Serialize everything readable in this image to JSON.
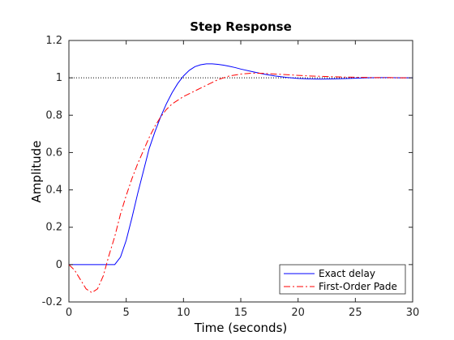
{
  "chart_data": {
    "type": "line",
    "title": "Step Response",
    "xlabel": "Time (seconds)",
    "ylabel": "Amplitude",
    "xlim": [
      0,
      30
    ],
    "ylim": [
      -0.2,
      1.2
    ],
    "xticks": [
      0,
      5,
      10,
      15,
      20,
      25,
      30
    ],
    "yticks": [
      -0.2,
      0,
      0.2,
      0.4,
      0.6,
      0.8,
      1,
      1.2
    ],
    "xtick_labels": [
      "0",
      "5",
      "10",
      "15",
      "20",
      "25",
      "30"
    ],
    "ytick_labels": [
      "-0.2",
      "0",
      "0.2",
      "0.4",
      "0.6",
      "0.8",
      "1",
      "1.2"
    ],
    "grid": false,
    "legend_position": "bottom-right",
    "reference_line": {
      "y": 1,
      "style": "dotted",
      "color": "#000000"
    },
    "series": [
      {
        "name": "Exact delay",
        "color": "#0000ff",
        "style": "solid",
        "x": [
          0,
          1,
          2,
          3,
          4,
          4.5,
          5,
          5.5,
          6,
          6.5,
          7,
          7.5,
          8,
          8.5,
          9,
          9.5,
          10,
          10.5,
          11,
          11.5,
          12,
          12.5,
          13,
          13.5,
          14,
          14.5,
          15,
          16,
          17,
          18,
          19,
          20,
          21,
          22,
          23,
          24,
          25,
          26,
          27,
          28,
          29,
          30
        ],
        "y": [
          0,
          0,
          0,
          0,
          0,
          0.04,
          0.13,
          0.25,
          0.38,
          0.5,
          0.62,
          0.71,
          0.79,
          0.86,
          0.92,
          0.97,
          1.01,
          1.04,
          1.06,
          1.07,
          1.075,
          1.075,
          1.072,
          1.068,
          1.062,
          1.055,
          1.047,
          1.033,
          1.02,
          1.01,
          1.002,
          0.997,
          0.994,
          0.993,
          0.994,
          0.996,
          0.998,
          1.0,
          1.001,
          1.001,
          1.0,
          1.0
        ]
      },
      {
        "name": "First-Order Pade",
        "color": "#ff0000",
        "style": "dashdot",
        "x": [
          0,
          0.5,
          1,
          1.5,
          2,
          2.5,
          3,
          3.5,
          4,
          4.5,
          5,
          5.5,
          6,
          6.5,
          7,
          7.5,
          8,
          8.5,
          9,
          9.5,
          10,
          11,
          12,
          13,
          14,
          15,
          16,
          17,
          18,
          19,
          20,
          21,
          22,
          23,
          24,
          25,
          26,
          27,
          28,
          29,
          30
        ],
        "y": [
          0,
          -0.03,
          -0.08,
          -0.13,
          -0.15,
          -0.13,
          -0.06,
          0.05,
          0.15,
          0.27,
          0.37,
          0.46,
          0.54,
          0.61,
          0.68,
          0.74,
          0.79,
          0.83,
          0.86,
          0.88,
          0.9,
          0.93,
          0.96,
          0.99,
          1.01,
          1.02,
          1.025,
          1.024,
          1.02,
          1.017,
          1.013,
          1.01,
          1.008,
          1.006,
          1.004,
          1.003,
          1.002,
          1.001,
          1.001,
          1.0,
          1.0
        ]
      }
    ]
  }
}
